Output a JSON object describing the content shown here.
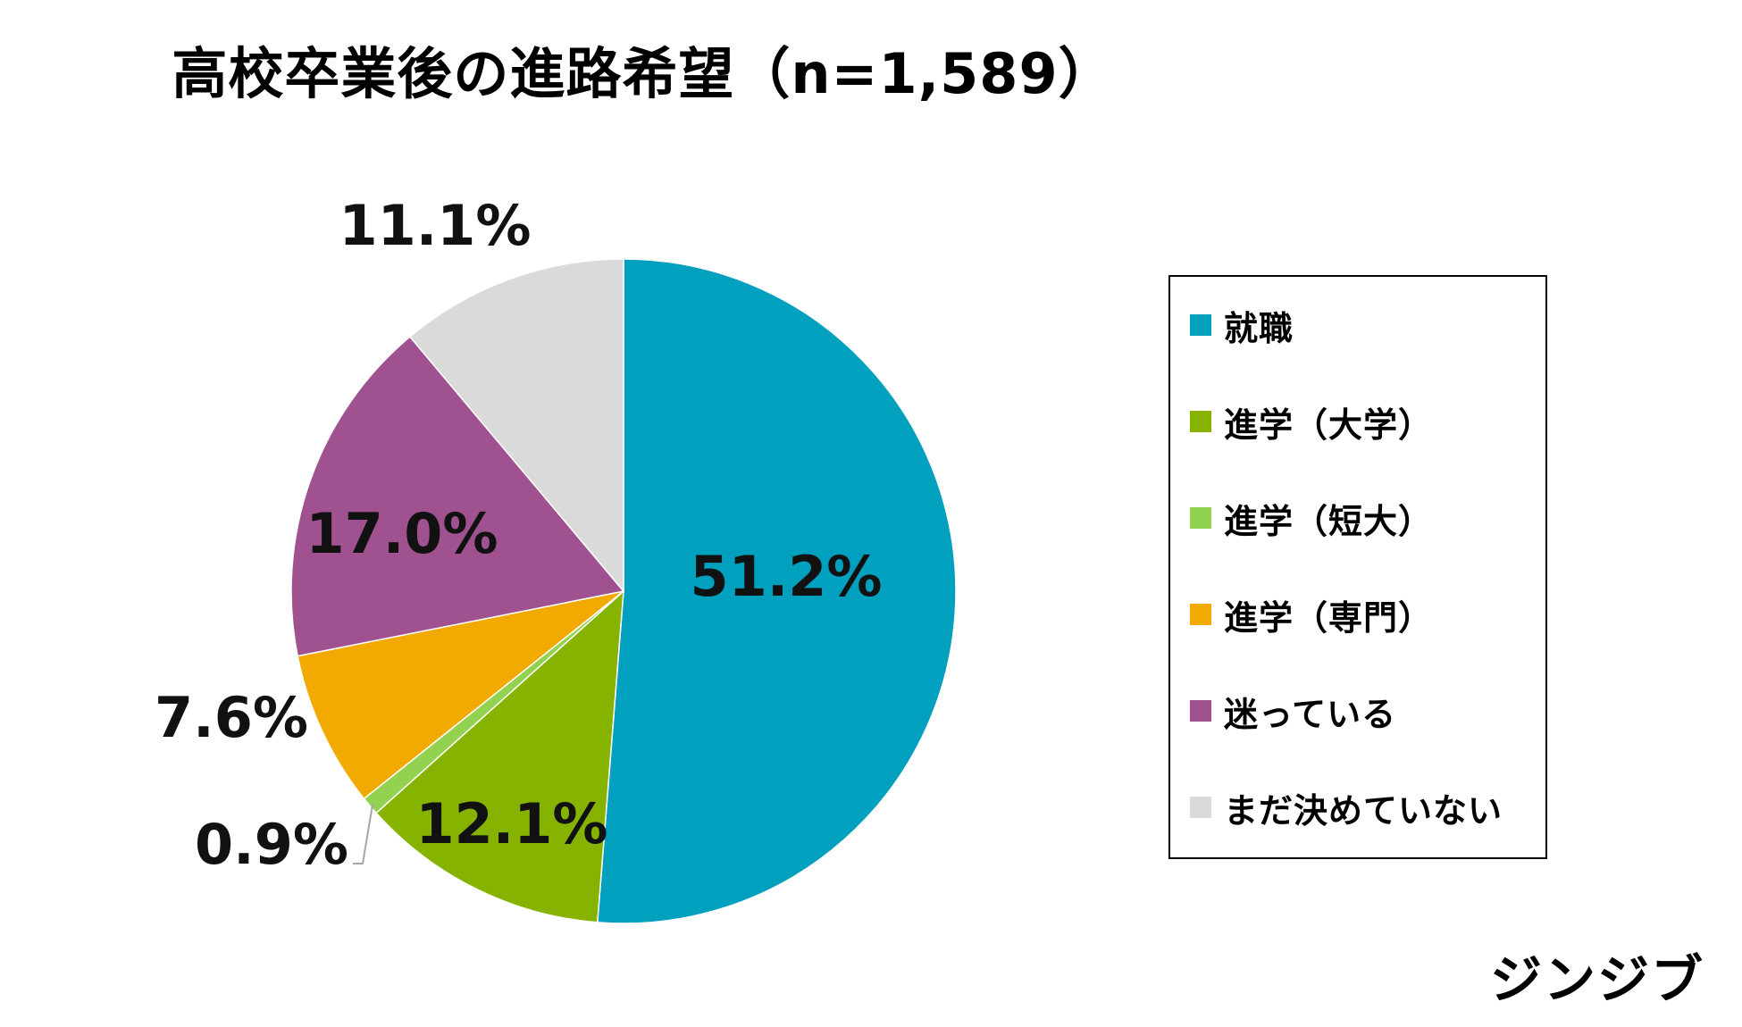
{
  "chart_data": {
    "type": "pie",
    "title": "高校卒業後の進路希望（n=1,589）",
    "categories": [
      "就職",
      "進学（大学）",
      "進学（短大）",
      "進学（専門）",
      "迷っている",
      "まだ決めていない"
    ],
    "values": [
      51.2,
      12.1,
      0.9,
      7.6,
      17.0,
      11.1
    ],
    "labels": [
      "51.2%",
      "12.1%",
      "0.9%",
      "7.6%",
      "17.0%",
      "11.1%"
    ],
    "colors": [
      "#00A0BE",
      "#86B300",
      "#93D150",
      "#F2A900",
      "#A05190",
      "#DADADB"
    ],
    "legend": "right",
    "start": "12 o'clock, clockwise"
  },
  "legend": {
    "items": [
      {
        "label": "就職",
        "color": "#00A0BE"
      },
      {
        "label": "進学（大学）",
        "color": "#86B300"
      },
      {
        "label": "進学（短大）",
        "color": "#93D150"
      },
      {
        "label": "進学（専門）",
        "color": "#F2A900"
      },
      {
        "label": "迷っている",
        "color": "#A05190"
      },
      {
        "label": "まだ決めていない",
        "color": "#DADADB"
      }
    ]
  },
  "logo": {
    "text": "ジンジブ"
  }
}
